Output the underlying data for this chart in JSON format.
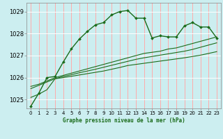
{
  "title": "Graphe pression niveau de la mer (hPa)",
  "bg_color": "#cceef0",
  "grid_color_v": "#ffaaaa",
  "grid_color_h": "#ffffff",
  "line_color": "#1a6b1a",
  "x_ticks": [
    0,
    1,
    2,
    3,
    4,
    5,
    6,
    7,
    8,
    9,
    10,
    11,
    12,
    13,
    14,
    15,
    16,
    17,
    18,
    19,
    20,
    21,
    22,
    23
  ],
  "y_ticks": [
    1025,
    1026,
    1027,
    1028,
    1029
  ],
  "ylim": [
    1024.6,
    1029.4
  ],
  "xlim": [
    -0.5,
    23.5
  ],
  "series_x": [
    0,
    1,
    2,
    3,
    4,
    5,
    6,
    7,
    8,
    9,
    10,
    11,
    12,
    13,
    14,
    15,
    16,
    17,
    18,
    19,
    20,
    21,
    22,
    23
  ],
  "values_main": [
    1024.7,
    1025.3,
    1026.0,
    1026.05,
    1026.7,
    1027.3,
    1027.75,
    1028.1,
    1028.4,
    1028.5,
    1028.85,
    1029.0,
    1029.05,
    1028.7,
    1028.7,
    1027.8,
    1027.9,
    1027.85,
    1027.85,
    1028.35,
    1028.5,
    1028.3,
    1028.3,
    1027.8
  ],
  "values_line2": [
    1025.6,
    1025.7,
    1025.85,
    1026.0,
    1026.1,
    1026.2,
    1026.3,
    1026.4,
    1026.5,
    1026.6,
    1026.7,
    1026.8,
    1026.9,
    1027.0,
    1027.1,
    1027.15,
    1027.2,
    1027.3,
    1027.35,
    1027.45,
    1027.55,
    1027.65,
    1027.75,
    1027.85
  ],
  "values_line3": [
    1025.5,
    1025.65,
    1025.8,
    1025.95,
    1026.05,
    1026.13,
    1026.22,
    1026.3,
    1026.38,
    1026.47,
    1026.56,
    1026.65,
    1026.74,
    1026.83,
    1026.9,
    1026.96,
    1027.02,
    1027.08,
    1027.14,
    1027.2,
    1027.28,
    1027.38,
    1027.48,
    1027.58
  ],
  "values_line4": [
    1025.1,
    1025.25,
    1025.45,
    1025.95,
    1026.0,
    1026.06,
    1026.12,
    1026.18,
    1026.24,
    1026.3,
    1026.38,
    1026.46,
    1026.55,
    1026.6,
    1026.65,
    1026.7,
    1026.75,
    1026.8,
    1026.85,
    1026.9,
    1026.96,
    1027.02,
    1027.1,
    1027.18
  ]
}
